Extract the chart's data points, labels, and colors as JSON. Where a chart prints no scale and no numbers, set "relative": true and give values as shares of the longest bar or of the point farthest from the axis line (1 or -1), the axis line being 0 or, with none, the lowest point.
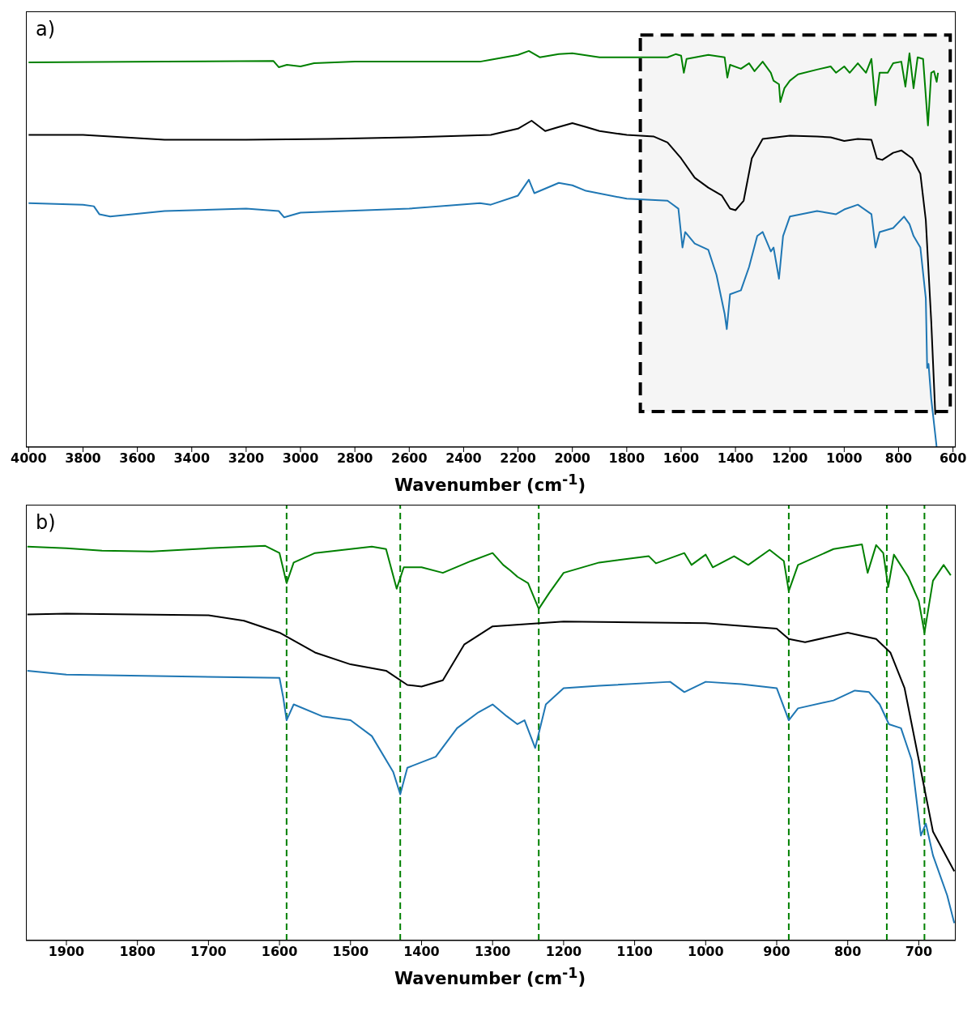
{
  "chart_data": [
    {
      "type": "line",
      "relative": true,
      "annotations": [
        "a)"
      ],
      "xlabel": "Wavenumber (cm$^{-1}$)",
      "xlim": [
        4010,
        590
      ],
      "xticks": [
        4000,
        3800,
        3600,
        3400,
        3200,
        3000,
        2800,
        2600,
        2400,
        2200,
        2000,
        1800,
        1600,
        1400,
        1200,
        1000,
        800,
        600
      ],
      "tick_labels": "x",
      "grid": false,
      "legend": false,
      "marker": "none",
      "line_style": "solid",
      "bands": [
        {
          "axis": "x",
          "from": 1750,
          "to": 610,
          "color": "#000000"
        }
      ],
      "series": [
        {
          "color": "#008000",
          "x": [
            4000,
            3500,
            3100,
            3080,
            3050,
            3000,
            2950,
            2800,
            2340,
            2300,
            2200,
            2160,
            2120,
            2050,
            2000,
            1900,
            1800,
            1650,
            1620,
            1600,
            1590,
            1580,
            1500,
            1440,
            1430,
            1420,
            1380,
            1350,
            1330,
            1300,
            1270,
            1260,
            1240,
            1235,
            1220,
            1200,
            1170,
            1100,
            1050,
            1030,
            1000,
            980,
            950,
            920,
            900,
            885,
            870,
            840,
            820,
            790,
            775,
            760,
            745,
            730,
            710,
            692,
            680,
            670,
            660,
            655
          ],
          "values": [
            0.971,
            0.973,
            0.975,
            0.959,
            0.965,
            0.961,
            0.969,
            0.973,
            0.973,
            0.978,
            0.99,
            1.0,
            0.984,
            0.992,
            0.994,
            0.984,
            0.984,
            0.984,
            0.992,
            0.988,
            0.945,
            0.98,
            0.99,
            0.984,
            0.933,
            0.965,
            0.955,
            0.969,
            0.949,
            0.973,
            0.945,
            0.925,
            0.916,
            0.871,
            0.906,
            0.925,
            0.941,
            0.953,
            0.961,
            0.945,
            0.961,
            0.945,
            0.969,
            0.945,
            0.98,
            0.863,
            0.945,
            0.945,
            0.969,
            0.973,
            0.91,
            0.994,
            0.906,
            0.984,
            0.98,
            0.812,
            0.945,
            0.949,
            0.922,
            0.945
          ]
        },
        {
          "color": "#000000",
          "x": [
            4000,
            3800,
            3500,
            3200,
            2900,
            2600,
            2300,
            2200,
            2150,
            2100,
            2050,
            2000,
            1950,
            1900,
            1800,
            1700,
            1650,
            1600,
            1550,
            1500,
            1450,
            1420,
            1400,
            1370,
            1340,
            1300,
            1200,
            1100,
            1050,
            1000,
            950,
            900,
            880,
            860,
            820,
            790,
            750,
            720,
            700,
            680,
            665
          ],
          "values": [
            0.788,
            0.788,
            0.776,
            0.776,
            0.778,
            0.782,
            0.788,
            0.804,
            0.824,
            0.798,
            0.808,
            0.818,
            0.808,
            0.798,
            0.788,
            0.784,
            0.769,
            0.729,
            0.68,
            0.655,
            0.635,
            0.602,
            0.598,
            0.622,
            0.729,
            0.778,
            0.786,
            0.784,
            0.782,
            0.773,
            0.778,
            0.776,
            0.729,
            0.725,
            0.743,
            0.749,
            0.729,
            0.69,
            0.573,
            0.318,
            0.082
          ]
        },
        {
          "color": "#1f77b4",
          "x": [
            4000,
            3800,
            3760,
            3740,
            3700,
            3500,
            3200,
            3080,
            3060,
            3000,
            2600,
            2340,
            2300,
            2200,
            2160,
            2140,
            2050,
            2000,
            1950,
            1800,
            1650,
            1610,
            1595,
            1585,
            1550,
            1500,
            1470,
            1440,
            1432,
            1420,
            1380,
            1350,
            1320,
            1300,
            1270,
            1260,
            1240,
            1225,
            1200,
            1100,
            1030,
            1000,
            950,
            900,
            885,
            870,
            820,
            780,
            760,
            745,
            720,
            700,
            695,
            690,
            680,
            660
          ],
          "values": [
            0.616,
            0.612,
            0.608,
            0.588,
            0.582,
            0.596,
            0.602,
            0.596,
            0.58,
            0.592,
            0.602,
            0.616,
            0.612,
            0.635,
            0.675,
            0.641,
            0.667,
            0.661,
            0.647,
            0.627,
            0.622,
            0.602,
            0.504,
            0.543,
            0.514,
            0.498,
            0.435,
            0.337,
            0.298,
            0.386,
            0.396,
            0.455,
            0.533,
            0.543,
            0.494,
            0.504,
            0.425,
            0.533,
            0.582,
            0.596,
            0.588,
            0.6,
            0.612,
            0.588,
            0.504,
            0.543,
            0.553,
            0.582,
            0.563,
            0.533,
            0.504,
            0.376,
            0.2,
            0.21,
            0.122,
            0.0
          ]
        }
      ]
    },
    {
      "type": "line",
      "relative": true,
      "annotations": [
        "b)"
      ],
      "xlabel": "Wavenumber (cm$^{-1}$)",
      "xlim": [
        1957,
        648
      ],
      "xticks": [
        1900,
        1800,
        1700,
        1600,
        1500,
        1400,
        1300,
        1200,
        1100,
        1000,
        900,
        800,
        700
      ],
      "tick_labels": "x",
      "grid": false,
      "legend": false,
      "marker": "none",
      "line_style": "solid",
      "ref_lines": [
        {
          "axis": "x",
          "value": 1590,
          "color": "#008000",
          "line_style": "dashed"
        },
        {
          "axis": "x",
          "value": 1430,
          "color": "#008000",
          "line_style": "dashed"
        },
        {
          "axis": "x",
          "value": 1235,
          "color": "#008000",
          "line_style": "dashed"
        },
        {
          "axis": "x",
          "value": 883,
          "color": "#008000",
          "line_style": "dashed"
        },
        {
          "axis": "x",
          "value": 745,
          "color": "#008000",
          "line_style": "dashed"
        },
        {
          "axis": "x",
          "value": 692,
          "color": "#008000",
          "line_style": "dashed"
        }
      ],
      "series": [
        {
          "color": "#008000",
          "x": [
            1955,
            1900,
            1850,
            1780,
            1700,
            1620,
            1600,
            1590,
            1580,
            1550,
            1470,
            1450,
            1435,
            1425,
            1400,
            1370,
            1330,
            1300,
            1285,
            1275,
            1265,
            1250,
            1235,
            1220,
            1200,
            1150,
            1080,
            1070,
            1030,
            1020,
            1000,
            990,
            960,
            940,
            910,
            890,
            883,
            870,
            820,
            780,
            772,
            760,
            750,
            743,
            735,
            715,
            700,
            692,
            680,
            665,
            655
          ],
          "values": [
            0.994,
            0.99,
            0.984,
            0.982,
            0.99,
            0.996,
            0.978,
            0.902,
            0.954,
            0.978,
            0.994,
            0.988,
            0.888,
            0.942,
            0.942,
            0.928,
            0.958,
            0.978,
            0.948,
            0.934,
            0.918,
            0.902,
            0.837,
            0.878,
            0.928,
            0.954,
            0.97,
            0.952,
            0.978,
            0.948,
            0.974,
            0.942,
            0.97,
            0.948,
            0.986,
            0.958,
            0.882,
            0.948,
            0.988,
            1.0,
            0.928,
            0.998,
            0.978,
            0.892,
            0.974,
            0.918,
            0.857,
            0.777,
            0.908,
            0.948,
            0.922
          ]
        },
        {
          "color": "#000000",
          "x": [
            1955,
            1900,
            1700,
            1650,
            1600,
            1550,
            1500,
            1450,
            1420,
            1400,
            1370,
            1340,
            1300,
            1200,
            1000,
            900,
            883,
            860,
            800,
            760,
            740,
            720,
            700,
            680,
            650
          ],
          "values": [
            0.823,
            0.825,
            0.821,
            0.807,
            0.777,
            0.727,
            0.697,
            0.681,
            0.645,
            0.641,
            0.657,
            0.747,
            0.793,
            0.805,
            0.801,
            0.787,
            0.761,
            0.753,
            0.777,
            0.761,
            0.727,
            0.637,
            0.456,
            0.275,
            0.175
          ]
        },
        {
          "color": "#1f77b4",
          "x": [
            1955,
            1900,
            1600,
            1595,
            1590,
            1580,
            1540,
            1500,
            1470,
            1440,
            1430,
            1420,
            1380,
            1350,
            1320,
            1300,
            1280,
            1265,
            1255,
            1240,
            1225,
            1200,
            1150,
            1050,
            1030,
            1000,
            950,
            900,
            883,
            870,
            820,
            790,
            770,
            755,
            742,
            725,
            710,
            697,
            690,
            680,
            660,
            650
          ],
          "values": [
            0.681,
            0.671,
            0.663,
            0.616,
            0.556,
            0.596,
            0.566,
            0.556,
            0.516,
            0.426,
            0.369,
            0.436,
            0.464,
            0.536,
            0.576,
            0.596,
            0.566,
            0.546,
            0.556,
            0.486,
            0.596,
            0.637,
            0.643,
            0.653,
            0.627,
            0.653,
            0.647,
            0.637,
            0.556,
            0.586,
            0.606,
            0.631,
            0.627,
            0.596,
            0.546,
            0.536,
            0.456,
            0.265,
            0.295,
            0.215,
            0.114,
            0.044
          ]
        }
      ]
    }
  ]
}
